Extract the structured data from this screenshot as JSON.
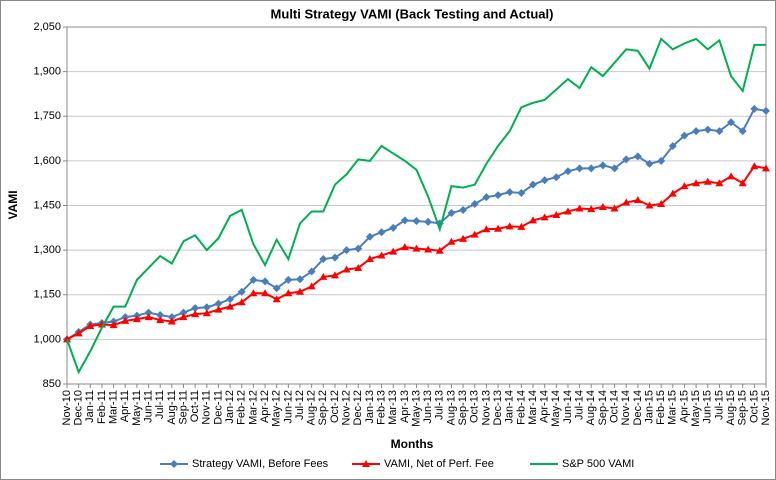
{
  "chart_data": {
    "type": "line",
    "title": "Multi Strategy VAMI (Back Testing and Actual)",
    "x_label": "Months",
    "y_label": "VAMI",
    "categories": [
      "Nov-10",
      "Dec-10",
      "Jan-11",
      "Feb-11",
      "Mar-11",
      "Apr-11",
      "May-11",
      "Jun-11",
      "Jul-11",
      "Aug-11",
      "Sep-11",
      "Oct-11",
      "Nov-11",
      "Dec-11",
      "Jan-12",
      "Feb-12",
      "Mar-12",
      "Apr-12",
      "May-12",
      "Jun-12",
      "Jul-12",
      "Aug-12",
      "Sep-12",
      "Oct-12",
      "Nov-12",
      "Dec-12",
      "Jan-13",
      "Feb-13",
      "Mar-13",
      "Apr-13",
      "May-13",
      "Jun-13",
      "Jul-13",
      "Aug-13",
      "Sep-13",
      "Oct-13",
      "Nov-13",
      "Dec-13",
      "Jan-14",
      "Feb-14",
      "Mar-14",
      "Apr-14",
      "May-14",
      "Jun-14",
      "Jul-14",
      "Aug-14",
      "Sep-14",
      "Oct-14",
      "Nov-14",
      "Dec-14",
      "Jan-15",
      "Feb-15",
      "Mar-15",
      "Apr-15",
      "May-15",
      "Jun-15",
      "Jul-15",
      "Aug-15",
      "Sep-15",
      "Oct-15",
      "Nov-15"
    ],
    "series": [
      {
        "name": "Strategy VAMI, Before Fees",
        "color": "#4a7ebb",
        "marker": "diamond",
        "values": [
          1000,
          1025,
          1050,
          1055,
          1060,
          1075,
          1080,
          1090,
          1082,
          1075,
          1090,
          1105,
          1108,
          1120,
          1135,
          1160,
          1200,
          1195,
          1172,
          1200,
          1202,
          1228,
          1270,
          1275,
          1300,
          1305,
          1345,
          1360,
          1375,
          1400,
          1398,
          1395,
          1390,
          1425,
          1435,
          1455,
          1478,
          1485,
          1495,
          1492,
          1520,
          1535,
          1545,
          1565,
          1575,
          1575,
          1585,
          1575,
          1605,
          1615,
          1590,
          1600,
          1650,
          1685,
          1700,
          1705,
          1700,
          1730,
          1700,
          1775,
          1768
        ]
      },
      {
        "name": "VAMI, Net of Perf. Fee",
        "color": "#ff0000",
        "marker": "triangle",
        "values": [
          1000,
          1020,
          1045,
          1050,
          1048,
          1062,
          1068,
          1075,
          1065,
          1060,
          1075,
          1085,
          1088,
          1100,
          1110,
          1125,
          1155,
          1155,
          1135,
          1155,
          1160,
          1178,
          1210,
          1215,
          1235,
          1240,
          1270,
          1282,
          1295,
          1310,
          1305,
          1302,
          1298,
          1328,
          1338,
          1352,
          1370,
          1372,
          1380,
          1378,
          1400,
          1410,
          1418,
          1430,
          1440,
          1438,
          1445,
          1440,
          1460,
          1468,
          1450,
          1455,
          1490,
          1515,
          1525,
          1530,
          1525,
          1548,
          1525,
          1582,
          1575
        ]
      },
      {
        "name": "S&P 500 VAMI",
        "color": "#00b050",
        "marker": "none",
        "values": [
          1000,
          890,
          960,
          1040,
          1110,
          1110,
          1200,
          1240,
          1280,
          1255,
          1330,
          1350,
          1300,
          1340,
          1415,
          1435,
          1320,
          1250,
          1335,
          1270,
          1390,
          1430,
          1430,
          1520,
          1555,
          1605,
          1600,
          1650,
          1625,
          1600,
          1570,
          1480,
          1370,
          1515,
          1510,
          1520,
          1590,
          1650,
          1700,
          1780,
          1795,
          1805,
          1840,
          1875,
          1845,
          1915,
          1885,
          1930,
          1975,
          1970,
          1910,
          2010,
          1975,
          1995,
          2010,
          1975,
          2005,
          1885,
          1835,
          1990,
          1990
        ]
      }
    ],
    "ylim": [
      850,
      2050
    ],
    "yticks": [
      850,
      {
        "value": 1000,
        "label": "1,000"
      },
      {
        "value": 1150,
        "label": "1,150"
      },
      {
        "value": 1300,
        "label": "1,300"
      },
      {
        "value": 1450,
        "label": "1,450"
      },
      {
        "value": 1600,
        "label": "1,600"
      },
      {
        "value": 1750,
        "label": "1,750"
      },
      {
        "value": 1900,
        "label": "1,900"
      },
      {
        "value": 2050,
        "label": "2,050"
      }
    ],
    "grid": true,
    "legend": "bottom"
  }
}
